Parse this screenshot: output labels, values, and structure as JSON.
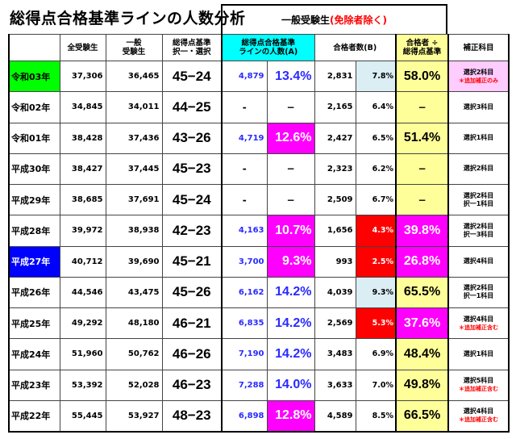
{
  "title": "総得点合格基準ラインの人数分析",
  "group_header": {
    "label": "一般受験生",
    "note": "(免除者除く)"
  },
  "headers": {
    "year": "",
    "all_examinees": "全受験生",
    "general_examinees_l1": "一般",
    "general_examinees_l2": "受験生",
    "line_l1": "総得点基準",
    "line_l2": "択一・選択",
    "count_a_l1": "総得点合格基準",
    "count_a_l2": "ラインの人数(A)",
    "passers_b": "合格者数(B)",
    "ratio_l1": "合格者 ÷",
    "ratio_l2": "総得点基準",
    "correction": "補正科目"
  },
  "colors": {
    "header_cyan": "#00ffff",
    "header_yellow": "#ffff99",
    "ratio_yellow": "#ffff99",
    "highlight_magenta": "#ff00ff",
    "highlight_red": "#ff0000",
    "light_blue": "#daeef3",
    "pink": "#ffccff",
    "year_green": "#00ff00",
    "year_blue": "#0000ff"
  },
  "rows": [
    {
      "year": "令和03年",
      "all": "37,306",
      "general": "36,465",
      "line": "45−24",
      "a": "4,879",
      "a_pct": "13.4%",
      "b": "2,831",
      "b_pct": "7.8%",
      "ratio": "58.0%",
      "corr": "選択2科目",
      "corr_note": "＊追加補正のみ"
    },
    {
      "year": "令和02年",
      "all": "34,845",
      "general": "34,011",
      "line": "44−25",
      "a": "-",
      "a_pct": "−",
      "b": "2,165",
      "b_pct": "6.4%",
      "ratio": "−",
      "corr": "選択3科目",
      "corr_note": ""
    },
    {
      "year": "令和01年",
      "all": "38,428",
      "general": "37,436",
      "line": "43−26",
      "a": "4,719",
      "a_pct": "12.6%",
      "b": "2,427",
      "b_pct": "6.5%",
      "ratio": "51.4%",
      "corr": "選択1科目",
      "corr_note": ""
    },
    {
      "year": "平成30年",
      "all": "38,427",
      "general": "37,445",
      "line": "45−23",
      "a": "-",
      "a_pct": "−",
      "b": "2,323",
      "b_pct": "6.2%",
      "ratio": "−",
      "corr": "選択2科目",
      "corr_note": ""
    },
    {
      "year": "平成29年",
      "all": "38,685",
      "general": "37,691",
      "line": "45−24",
      "a": "-",
      "a_pct": "−",
      "b": "2,509",
      "b_pct": "6.7%",
      "ratio": "−",
      "corr": "選択2科目",
      "corr2": "択一1科目",
      "corr_note": ""
    },
    {
      "year": "平成28年",
      "all": "39,972",
      "general": "38,938",
      "line": "42−23",
      "a": "4,163",
      "a_pct": "10.7%",
      "b": "1,656",
      "b_pct": "4.3%",
      "ratio": "39.8%",
      "corr": "選択2科目",
      "corr2": "択一3科目",
      "corr_note": ""
    },
    {
      "year": "平成27年",
      "all": "40,712",
      "general": "39,690",
      "line": "45−21",
      "a": "3,700",
      "a_pct": "9.3%",
      "b": "993",
      "b_pct": "2.5%",
      "ratio": "26.8%",
      "corr": "選択4科目",
      "corr_note": ""
    },
    {
      "year": "平成26年",
      "all": "44,546",
      "general": "43,475",
      "line": "45−26",
      "a": "6,162",
      "a_pct": "14.2%",
      "b": "4,039",
      "b_pct": "9.3%",
      "ratio": "65.5%",
      "corr": "選択2科目",
      "corr2": "択一1科目",
      "corr_note": ""
    },
    {
      "year": "平成25年",
      "all": "49,292",
      "general": "48,180",
      "line": "46−21",
      "a": "6,835",
      "a_pct": "14.2%",
      "b": "2,569",
      "b_pct": "5.3%",
      "ratio": "37.6%",
      "corr": "選択4科目",
      "corr_note": "＊追加補正含む"
    },
    {
      "year": "平成24年",
      "all": "51,960",
      "general": "50,762",
      "line": "46−26",
      "a": "7,190",
      "a_pct": "14.2%",
      "b": "3,483",
      "b_pct": "6.9%",
      "ratio": "48.4%",
      "corr": "選択1科目",
      "corr_note": ""
    },
    {
      "year": "平成23年",
      "all": "53,392",
      "general": "52,028",
      "line": "46−23",
      "a": "7,288",
      "a_pct": "14.0%",
      "b": "3,633",
      "b_pct": "7.0%",
      "ratio": "49.8%",
      "corr": "選択5科目",
      "corr_note": "＊追加補正含む"
    },
    {
      "year": "平成22年",
      "all": "55,445",
      "general": "53,927",
      "line": "48−23",
      "a": "6,898",
      "a_pct": "12.8%",
      "b": "4,589",
      "b_pct": "8.5%",
      "ratio": "66.5%",
      "corr": "選択4科目",
      "corr_note": "＊追加補正含む"
    }
  ]
}
